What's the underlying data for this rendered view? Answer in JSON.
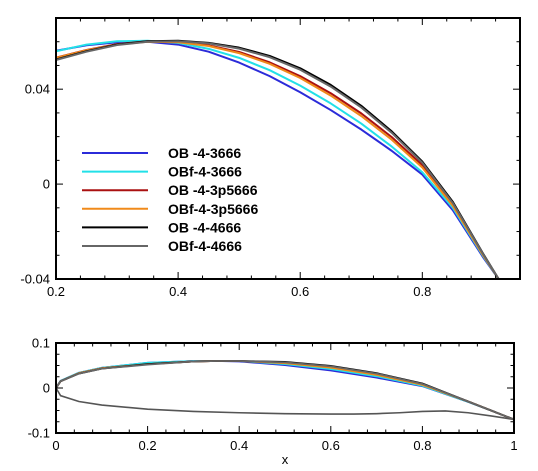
{
  "chart_data": [
    {
      "type": "line",
      "title": "",
      "xlabel": "",
      "ylabel": "",
      "xlim": [
        0.2,
        0.96
      ],
      "ylim": [
        -0.04,
        0.07
      ],
      "x_ticks": [
        0.2,
        0.4,
        0.6,
        0.8
      ],
      "x_tick_labels": [
        "0.2",
        "0.4",
        "0.6",
        "0.8"
      ],
      "y_ticks": [
        -0.04,
        0,
        0.04
      ],
      "y_tick_labels": [
        "-0.04",
        "0",
        "0.04"
      ],
      "grid": false,
      "legend_position": "bottom-left",
      "series": [
        {
          "name": "OB -4-3666",
          "color": "#2b2bd9",
          "x": [
            0.2,
            0.25,
            0.3,
            0.35,
            0.4,
            0.45,
            0.5,
            0.55,
            0.6,
            0.65,
            0.7,
            0.75,
            0.8,
            0.85,
            0.9,
            0.925
          ],
          "y": [
            0.0562,
            0.0585,
            0.0598,
            0.06,
            0.0588,
            0.0558,
            0.0512,
            0.0455,
            0.0387,
            0.0312,
            0.023,
            0.014,
            0.004,
            -0.011,
            -0.031,
            -0.04
          ]
        },
        {
          "name": "OBf-4-3666",
          "color": "#22e0e8",
          "x": [
            0.2,
            0.25,
            0.3,
            0.35,
            0.4,
            0.45,
            0.5,
            0.55,
            0.6,
            0.65,
            0.7,
            0.75,
            0.8,
            0.85,
            0.9,
            0.925
          ],
          "y": [
            0.056,
            0.0588,
            0.0602,
            0.0604,
            0.0595,
            0.057,
            0.0532,
            0.048,
            0.0415,
            0.034,
            0.0255,
            0.0158,
            0.005,
            -0.01,
            -0.0305,
            -0.04
          ]
        },
        {
          "name": "OB -4-3p5666",
          "color": "#aa1111",
          "x": [
            0.2,
            0.25,
            0.3,
            0.35,
            0.4,
            0.45,
            0.5,
            0.55,
            0.6,
            0.65,
            0.7,
            0.75,
            0.8,
            0.85,
            0.9,
            0.925
          ],
          "y": [
            0.0533,
            0.0565,
            0.059,
            0.0602,
            0.06,
            0.0585,
            0.0557,
            0.0513,
            0.0455,
            0.0383,
            0.0298,
            0.0198,
            0.008,
            -0.0085,
            -0.03,
            -0.04
          ]
        },
        {
          "name": "OBf-4-3p5666",
          "color": "#f08a1a",
          "x": [
            0.2,
            0.25,
            0.3,
            0.35,
            0.4,
            0.45,
            0.5,
            0.55,
            0.6,
            0.65,
            0.7,
            0.75,
            0.8,
            0.85,
            0.9,
            0.925
          ],
          "y": [
            0.0532,
            0.0564,
            0.0588,
            0.06,
            0.0598,
            0.0582,
            0.0552,
            0.0507,
            0.0447,
            0.0373,
            0.0287,
            0.0187,
            0.007,
            -0.0092,
            -0.0302,
            -0.04
          ]
        },
        {
          "name": "OB -4-4666",
          "color": "#000000",
          "x": [
            0.2,
            0.25,
            0.3,
            0.35,
            0.4,
            0.45,
            0.5,
            0.55,
            0.6,
            0.65,
            0.7,
            0.75,
            0.8,
            0.85,
            0.9,
            0.925
          ],
          "y": [
            0.0525,
            0.056,
            0.0588,
            0.0602,
            0.0604,
            0.0595,
            0.0575,
            0.054,
            0.0488,
            0.0418,
            0.033,
            0.0222,
            0.0095,
            -0.0075,
            -0.0295,
            -0.04
          ]
        },
        {
          "name": "OBf-4-4666",
          "color": "#666666",
          "x": [
            0.2,
            0.25,
            0.3,
            0.35,
            0.4,
            0.45,
            0.5,
            0.55,
            0.6,
            0.65,
            0.7,
            0.75,
            0.8,
            0.85,
            0.9,
            0.925
          ],
          "y": [
            0.0523,
            0.0558,
            0.0586,
            0.06,
            0.0602,
            0.0593,
            0.0571,
            0.0535,
            0.0482,
            0.0411,
            0.0323,
            0.0216,
            0.009,
            -0.008,
            -0.0297,
            -0.04
          ]
        }
      ]
    },
    {
      "type": "line",
      "title": "",
      "xlabel": "x",
      "ylabel": "",
      "xlim": [
        0,
        1
      ],
      "ylim": [
        -0.1,
        0.1
      ],
      "x_ticks": [
        0,
        0.2,
        0.4,
        0.6,
        0.8,
        1
      ],
      "x_tick_labels": [
        "0",
        "0.2",
        "0.4",
        "0.6",
        "0.8",
        "1"
      ],
      "y_ticks": [
        -0.1,
        0,
        0.1
      ],
      "y_tick_labels": [
        "-0.1",
        "0",
        "0.1"
      ],
      "grid": false,
      "lower_surface": {
        "x": [
          0,
          0.01,
          0.05,
          0.1,
          0.2,
          0.3,
          0.4,
          0.5,
          0.6,
          0.65,
          0.7,
          0.75,
          0.8,
          0.85,
          0.9,
          0.95,
          1.0
        ],
        "y": [
          0,
          -0.017,
          -0.03,
          -0.038,
          -0.047,
          -0.052,
          -0.055,
          -0.057,
          -0.058,
          -0.058,
          -0.057,
          -0.055,
          -0.052,
          -0.051,
          -0.055,
          -0.062,
          -0.07
        ]
      },
      "series": [
        {
          "name": "OB -4-3666",
          "color": "#2b2bd9",
          "x": [
            0,
            0.01,
            0.05,
            0.1,
            0.2,
            0.3,
            0.35,
            0.4,
            0.5,
            0.6,
            0.7,
            0.8,
            0.9,
            0.95,
            1.0
          ],
          "y": [
            0,
            0.016,
            0.034,
            0.045,
            0.056,
            0.06,
            0.06,
            0.059,
            0.051,
            0.039,
            0.023,
            0.004,
            -0.031,
            -0.05,
            -0.07
          ]
        },
        {
          "name": "OBf-4-3666",
          "color": "#22e0e8",
          "x": [
            0,
            0.01,
            0.05,
            0.1,
            0.2,
            0.3,
            0.35,
            0.4,
            0.5,
            0.6,
            0.7,
            0.8,
            0.9,
            0.95,
            1.0
          ],
          "y": [
            0,
            0.016,
            0.034,
            0.045,
            0.056,
            0.06,
            0.06,
            0.06,
            0.053,
            0.042,
            0.026,
            0.005,
            -0.031,
            -0.05,
            -0.07
          ]
        },
        {
          "name": "OB -4-3p5666",
          "color": "#aa1111",
          "x": [
            0,
            0.01,
            0.05,
            0.1,
            0.2,
            0.3,
            0.35,
            0.4,
            0.5,
            0.6,
            0.7,
            0.8,
            0.9,
            0.95,
            1.0
          ],
          "y": [
            0,
            0.015,
            0.033,
            0.044,
            0.053,
            0.059,
            0.06,
            0.06,
            0.056,
            0.046,
            0.03,
            0.008,
            -0.03,
            -0.05,
            -0.07
          ]
        },
        {
          "name": "OBf-4-3p5666",
          "color": "#f08a1a",
          "x": [
            0,
            0.01,
            0.05,
            0.1,
            0.2,
            0.3,
            0.35,
            0.4,
            0.5,
            0.6,
            0.7,
            0.8,
            0.9,
            0.95,
            1.0
          ],
          "y": [
            0,
            0.015,
            0.033,
            0.044,
            0.053,
            0.059,
            0.06,
            0.06,
            0.055,
            0.045,
            0.029,
            0.007,
            -0.03,
            -0.05,
            -0.07
          ]
        },
        {
          "name": "OB -4-4666",
          "color": "#000000",
          "x": [
            0,
            0.01,
            0.05,
            0.1,
            0.2,
            0.3,
            0.35,
            0.4,
            0.5,
            0.6,
            0.7,
            0.8,
            0.9,
            0.95,
            1.0
          ],
          "y": [
            0,
            0.015,
            0.032,
            0.043,
            0.053,
            0.059,
            0.06,
            0.06,
            0.058,
            0.049,
            0.033,
            0.01,
            -0.03,
            -0.05,
            -0.07
          ]
        },
        {
          "name": "OBf-4-4666",
          "color": "#666666",
          "x": [
            0,
            0.01,
            0.05,
            0.1,
            0.2,
            0.3,
            0.35,
            0.4,
            0.5,
            0.6,
            0.7,
            0.8,
            0.9,
            0.95,
            1.0
          ],
          "y": [
            0,
            0.015,
            0.032,
            0.043,
            0.052,
            0.059,
            0.06,
            0.06,
            0.057,
            0.048,
            0.032,
            0.009,
            -0.03,
            -0.05,
            -0.07
          ]
        }
      ]
    }
  ]
}
